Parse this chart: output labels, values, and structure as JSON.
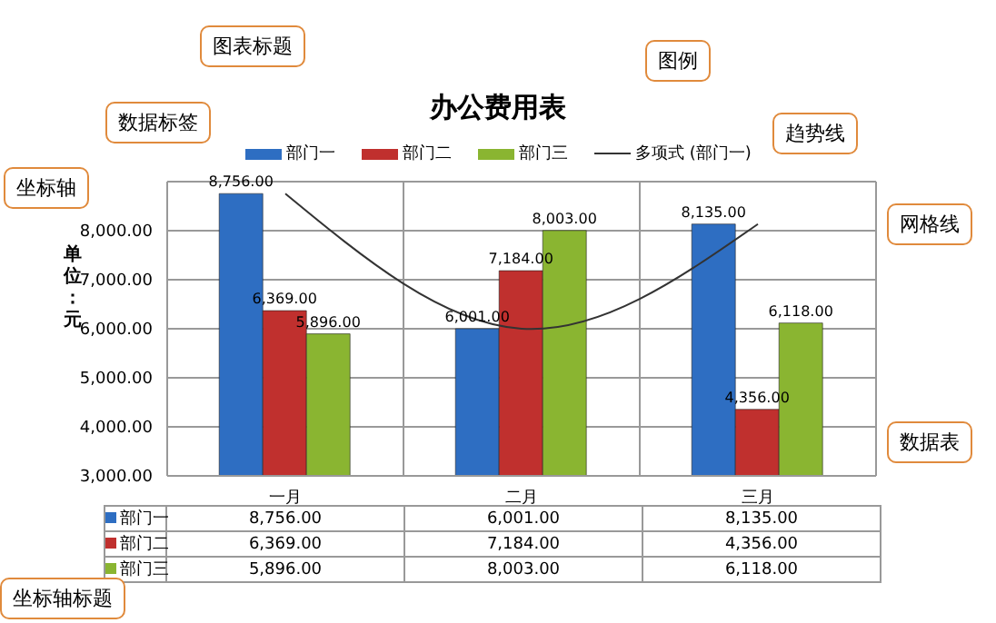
{
  "chart_data": {
    "type": "bar",
    "title": "办公费用表",
    "ylabel": "单位：元",
    "categories": [
      "一月",
      "二月",
      "三月"
    ],
    "series": [
      {
        "name": "部门一",
        "color": "#2e6ec2",
        "values": [
          8756,
          6001,
          8135
        ],
        "value_labels": [
          "8,756.00",
          "6,001.00",
          "8,135.00"
        ]
      },
      {
        "name": "部门二",
        "color": "#c0302e",
        "values": [
          6369,
          7184,
          4356
        ],
        "value_labels": [
          "6,369.00",
          "7,184.00",
          "4,356.00"
        ]
      },
      {
        "name": "部门三",
        "color": "#8ab531",
        "values": [
          5896,
          8003,
          6118
        ],
        "value_labels": [
          "5,896.00",
          "8,003.00",
          "6,118.00"
        ]
      },
      {
        "name": "多项式 (部门一)",
        "type": "line",
        "color": "#333333",
        "values": [
          8756,
          6001,
          8135
        ]
      }
    ],
    "ylim": [
      3000,
      9000
    ],
    "yticks": [
      {
        "value": 3000,
        "label": "3,000.00"
      },
      {
        "value": 4000,
        "label": "4,000.00"
      },
      {
        "value": 5000,
        "label": "5,000.00"
      },
      {
        "value": 6000,
        "label": "6,000.00"
      },
      {
        "value": 7000,
        "label": "7,000.00"
      },
      {
        "value": 8000,
        "label": "8,000.00"
      },
      {
        "value": 9000,
        "label": null
      }
    ],
    "grid": true,
    "legend": "top",
    "annotations": [
      "图表标题",
      "图例",
      "数据标签",
      "坐标轴",
      "趋势线",
      "网格线",
      "坐标轴标题",
      "数据表"
    ]
  }
}
